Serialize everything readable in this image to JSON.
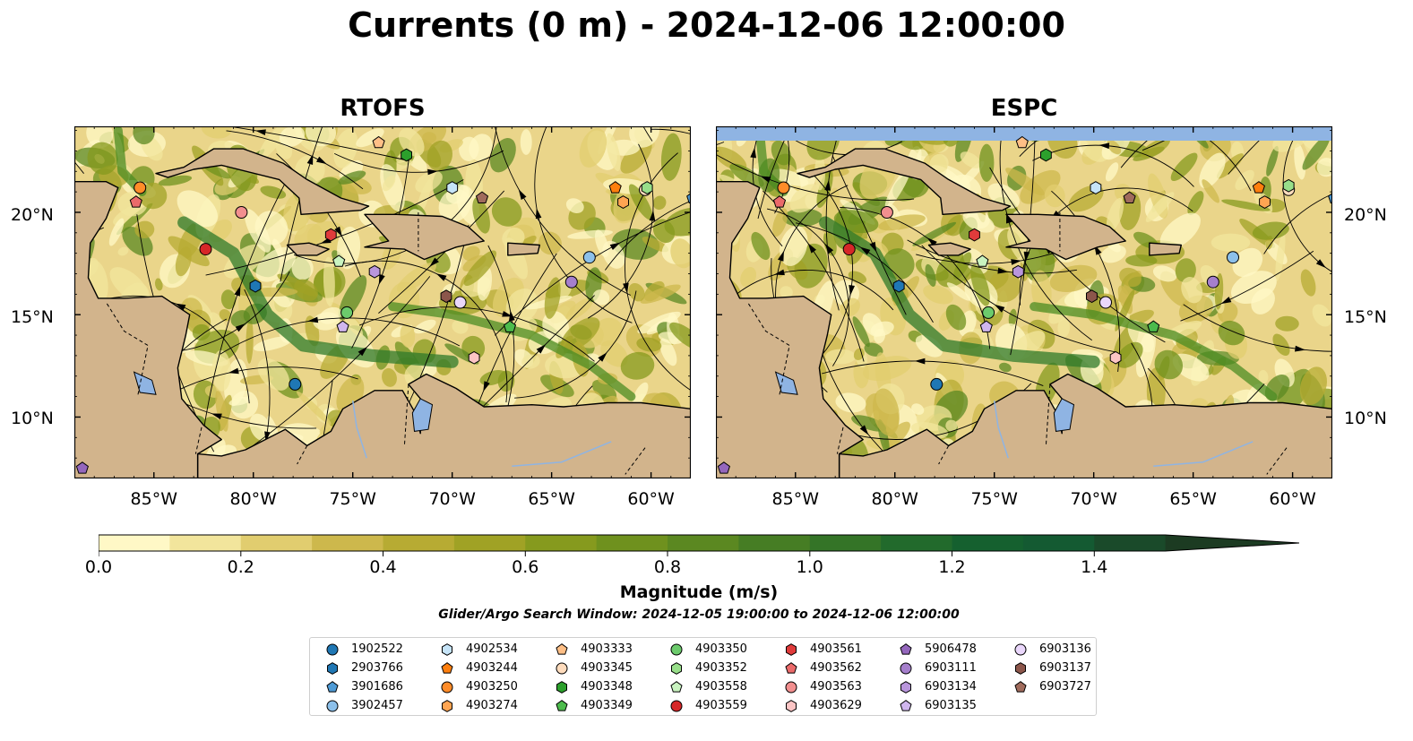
{
  "title": "Currents (0 m) - 2024-12-06 12:00:00",
  "panels": [
    {
      "id": "rtofs",
      "title": "RTOFS"
    },
    {
      "id": "espc",
      "title": "ESPC"
    }
  ],
  "map": {
    "lon_range": [
      -89,
      -58
    ],
    "lat_range": [
      7,
      24.2
    ],
    "lat_ticks": [
      "20°N",
      "15°N",
      "10°N"
    ],
    "lon_ticks": [
      "85°W",
      "80°W",
      "75°W",
      "70°W",
      "65°W",
      "60°W"
    ],
    "colors": {
      "land": "#d2b48c",
      "water": "#8fb4e3",
      "coastline": "#000000"
    }
  },
  "colorbar": {
    "label": "Magnitude (m/s)",
    "ticks": [
      "0.0",
      "0.2",
      "0.4",
      "0.6",
      "0.8",
      "1.0",
      "1.2",
      "1.4"
    ],
    "range": [
      0,
      1.6
    ],
    "extend": "max",
    "colors": [
      "#fff8c6",
      "#f2e59c",
      "#e1cd6f",
      "#cdb84c",
      "#b7ab33",
      "#a0a225",
      "#869a1e",
      "#6f911e",
      "#5b8821",
      "#467d24",
      "#347427",
      "#226a2c",
      "#15602f",
      "#145a32",
      "#1a4a2a",
      "#1c3b22"
    ]
  },
  "search_window": "Glider/Argo Search Window: 2024-12-05 19:00:00 to 2024-12-06 12:00:00",
  "legend": [
    {
      "id": "1902522",
      "marker": "circle",
      "color": "#1f77b4"
    },
    {
      "id": "2903766",
      "marker": "hexagon",
      "color": "#1f77b4"
    },
    {
      "id": "3901686",
      "marker": "pentagon",
      "color": "#4e9bd6"
    },
    {
      "id": "3902457",
      "marker": "circle",
      "color": "#8cc0ea"
    },
    {
      "id": "4902534",
      "marker": "hexagon",
      "color": "#c6e4f8"
    },
    {
      "id": "4903244",
      "marker": "pentagon",
      "color": "#ff7f0e"
    },
    {
      "id": "4903250",
      "marker": "circle",
      "color": "#ff8c29"
    },
    {
      "id": "4903274",
      "marker": "hexagon",
      "color": "#ffa552"
    },
    {
      "id": "4903333",
      "marker": "pentagon",
      "color": "#ffbf86"
    },
    {
      "id": "4903345",
      "marker": "circle",
      "color": "#ffdcbd"
    },
    {
      "id": "4903348",
      "marker": "hexagon",
      "color": "#2ca02c"
    },
    {
      "id": "4903349",
      "marker": "pentagon",
      "color": "#4cbb4c"
    },
    {
      "id": "4903350",
      "marker": "circle",
      "color": "#6ccb6c"
    },
    {
      "id": "4903352",
      "marker": "hexagon",
      "color": "#98df8a"
    },
    {
      "id": "4903558",
      "marker": "pentagon",
      "color": "#c9f3c0"
    },
    {
      "id": "4903559",
      "marker": "circle",
      "color": "#d62728"
    },
    {
      "id": "4903561",
      "marker": "hexagon",
      "color": "#e03b3b"
    },
    {
      "id": "4903562",
      "marker": "pentagon",
      "color": "#eb6a6a"
    },
    {
      "id": "4903563",
      "marker": "circle",
      "color": "#f28f8f"
    },
    {
      "id": "4903629",
      "marker": "hexagon",
      "color": "#fcc5c5"
    },
    {
      "id": "5906478",
      "marker": "pentagon",
      "color": "#9467bd"
    },
    {
      "id": "6903111",
      "marker": "circle",
      "color": "#a57fcc"
    },
    {
      "id": "6903134",
      "marker": "hexagon",
      "color": "#b996dc"
    },
    {
      "id": "6903135",
      "marker": "pentagon",
      "color": "#d0b6ee"
    },
    {
      "id": "6903136",
      "marker": "circle",
      "color": "#ead7fb"
    },
    {
      "id": "6903137",
      "marker": "hexagon",
      "color": "#8c564b"
    },
    {
      "id": "6903727",
      "marker": "pentagon",
      "color": "#a06b5c"
    }
  ],
  "platforms": {
    "rtofs": [
      {
        "id": "1902522",
        "lon": -77.9,
        "lat": 11.6
      },
      {
        "id": "2903766",
        "lon": -79.9,
        "lat": 16.4
      },
      {
        "id": "3901686",
        "lon": -57.9,
        "lat": 20.7
      },
      {
        "id": "3902457",
        "lon": -63.1,
        "lat": 17.8
      },
      {
        "id": "4902534",
        "lon": -70.0,
        "lat": 21.2
      },
      {
        "id": "4903244",
        "lon": -61.8,
        "lat": 21.2
      },
      {
        "id": "4903250",
        "lon": -85.7,
        "lat": 21.2
      },
      {
        "id": "4903274",
        "lon": -61.4,
        "lat": 20.5
      },
      {
        "id": "4903333",
        "lon": -73.7,
        "lat": 23.4
      },
      {
        "id": "4903345",
        "lon": -60.3,
        "lat": 21.1
      },
      {
        "id": "4903348",
        "lon": -72.3,
        "lat": 22.8
      },
      {
        "id": "4903349",
        "lon": -67.1,
        "lat": 14.4
      },
      {
        "id": "4903350",
        "lon": -75.3,
        "lat": 15.1
      },
      {
        "id": "4903352",
        "lon": -60.2,
        "lat": 21.2
      },
      {
        "id": "4903558",
        "lon": -75.7,
        "lat": 17.6
      },
      {
        "id": "4903559",
        "lon": -82.4,
        "lat": 18.2
      },
      {
        "id": "4903561",
        "lon": -76.1,
        "lat": 18.9
      },
      {
        "id": "4903562",
        "lon": -85.9,
        "lat": 20.5
      },
      {
        "id": "4903563",
        "lon": -80.6,
        "lat": 20.0
      },
      {
        "id": "4903629",
        "lon": -68.9,
        "lat": 12.9
      },
      {
        "id": "5906478",
        "lon": -88.6,
        "lat": 7.5
      },
      {
        "id": "6903111",
        "lon": -64.0,
        "lat": 16.6
      },
      {
        "id": "6903134",
        "lon": -73.9,
        "lat": 17.1
      },
      {
        "id": "6903135",
        "lon": -75.5,
        "lat": 14.4
      },
      {
        "id": "6903136",
        "lon": -69.6,
        "lat": 15.6
      },
      {
        "id": "6903137",
        "lon": -70.3,
        "lat": 15.9
      },
      {
        "id": "6903727",
        "lon": -68.5,
        "lat": 20.7
      }
    ],
    "espc": [
      {
        "id": "1902522",
        "lon": -77.9,
        "lat": 11.6
      },
      {
        "id": "2903766",
        "lon": -79.8,
        "lat": 16.4
      },
      {
        "id": "3901686",
        "lon": -57.9,
        "lat": 20.7
      },
      {
        "id": "3902457",
        "lon": -63.0,
        "lat": 17.8
      },
      {
        "id": "4902534",
        "lon": -69.9,
        "lat": 21.2
      },
      {
        "id": "4903244",
        "lon": -61.7,
        "lat": 21.2
      },
      {
        "id": "4903250",
        "lon": -85.6,
        "lat": 21.2
      },
      {
        "id": "4903274",
        "lon": -61.4,
        "lat": 20.5
      },
      {
        "id": "4903333",
        "lon": -73.6,
        "lat": 23.4
      },
      {
        "id": "4903345",
        "lon": -60.2,
        "lat": 21.1
      },
      {
        "id": "4903348",
        "lon": -72.4,
        "lat": 22.8
      },
      {
        "id": "4903349",
        "lon": -67.0,
        "lat": 14.4
      },
      {
        "id": "4903350",
        "lon": -75.3,
        "lat": 15.1
      },
      {
        "id": "4903352",
        "lon": -60.2,
        "lat": 21.3
      },
      {
        "id": "4903558",
        "lon": -75.6,
        "lat": 17.6
      },
      {
        "id": "4903559",
        "lon": -82.3,
        "lat": 18.2
      },
      {
        "id": "4903561",
        "lon": -76.0,
        "lat": 18.9
      },
      {
        "id": "4903562",
        "lon": -85.8,
        "lat": 20.5
      },
      {
        "id": "4903563",
        "lon": -80.4,
        "lat": 20.0
      },
      {
        "id": "4903629",
        "lon": -68.9,
        "lat": 12.9
      },
      {
        "id": "5906478",
        "lon": -88.6,
        "lat": 7.5
      },
      {
        "id": "6903111",
        "lon": -64.0,
        "lat": 16.6
      },
      {
        "id": "6903134",
        "lon": -73.8,
        "lat": 17.1
      },
      {
        "id": "6903135",
        "lon": -75.4,
        "lat": 14.4
      },
      {
        "id": "6903136",
        "lon": -69.4,
        "lat": 15.6
      },
      {
        "id": "6903137",
        "lon": -70.1,
        "lat": 15.9
      },
      {
        "id": "6903727",
        "lon": -68.2,
        "lat": 20.7
      }
    ]
  }
}
